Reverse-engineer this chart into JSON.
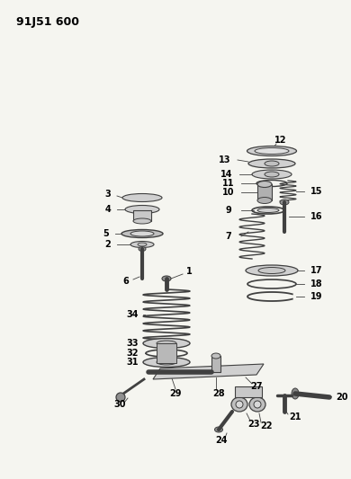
{
  "title": "91J51 600",
  "bg": "#f5f5f0",
  "lc": "#404040",
  "tc": "#000000",
  "fig_w": 3.9,
  "fig_h": 5.33,
  "dpi": 100,
  "xl": 0,
  "xr": 390,
  "yb": 0,
  "yt": 533
}
